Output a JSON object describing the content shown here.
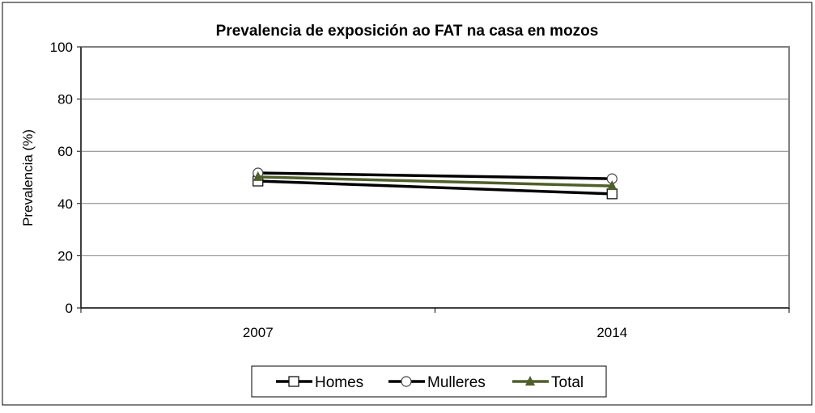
{
  "chart_data": {
    "type": "line",
    "title": "Prevalencia de exposición ao FAT na casa en mozos",
    "xlabel": "",
    "ylabel": "Prevalencia (%)",
    "categories": [
      "2007",
      "2014"
    ],
    "ylim": [
      0,
      100
    ],
    "yticks": [
      "0",
      "20",
      "40",
      "60",
      "80",
      "100"
    ],
    "grid": true,
    "legend_position": "bottom",
    "series": [
      {
        "name": "Homes",
        "values": [
          48.6,
          43.7
        ],
        "color": "#000000",
        "marker": "square"
      },
      {
        "name": "Mulleres",
        "values": [
          51.7,
          49.5
        ],
        "color": "#000000",
        "marker": "circle"
      },
      {
        "name": "Total",
        "values": [
          50.2,
          46.7
        ],
        "color": "#4f5f2a",
        "marker": "triangle"
      }
    ]
  }
}
